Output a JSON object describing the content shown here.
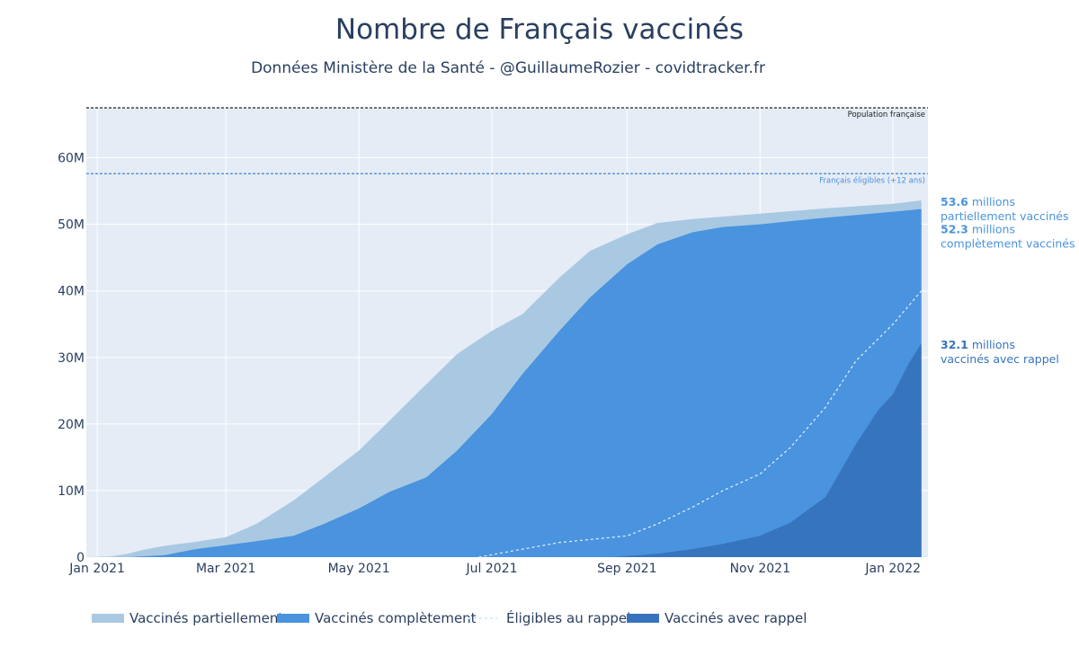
{
  "chart_data": {
    "type": "area",
    "title": "Nombre de Français vaccinés",
    "subtitle": "Données Ministère de la Santé - @GuillaumeRozier - covidtracker.fr",
    "xlabel": "",
    "ylabel": "",
    "x_range": [
      "2020-12-27",
      "2022-01-17"
    ],
    "x_ticks": [
      {
        "date": "2021-01-01",
        "label": "Jan 2021"
      },
      {
        "date": "2021-03-01",
        "label": "Mar 2021"
      },
      {
        "date": "2021-05-01",
        "label": "May 2021"
      },
      {
        "date": "2021-07-01",
        "label": "Jul 2021"
      },
      {
        "date": "2021-09-01",
        "label": "Sep 2021"
      },
      {
        "date": "2021-11-01",
        "label": "Nov 2021"
      },
      {
        "date": "2022-01-01",
        "label": "Jan 2022"
      }
    ],
    "ylim": [
      0,
      67.5
    ],
    "y_unit": "millions",
    "y_ticks": [
      {
        "value": 0,
        "label": "0"
      },
      {
        "value": 10,
        "label": "10M"
      },
      {
        "value": 20,
        "label": "20M"
      },
      {
        "value": 30,
        "label": "30M"
      },
      {
        "value": 40,
        "label": "40M"
      },
      {
        "value": 50,
        "label": "50M"
      },
      {
        "value": 60,
        "label": "60M"
      }
    ],
    "grid": true,
    "reference_lines": [
      {
        "name": "Population française",
        "value": 67.5,
        "color": "#222222"
      },
      {
        "name": "Français éligibles (+12 ans)",
        "value": 57.6,
        "color": "#4a90d9"
      }
    ],
    "series": [
      {
        "name": "Vaccinés partiellement",
        "kind": "area",
        "color": "#a9c9e3",
        "points": [
          [
            "2020-12-27",
            0
          ],
          [
            "2021-01-07",
            0.1
          ],
          [
            "2021-01-15",
            0.5
          ],
          [
            "2021-01-22",
            1.1
          ],
          [
            "2021-02-01",
            1.7
          ],
          [
            "2021-02-15",
            2.3
          ],
          [
            "2021-03-01",
            3.0
          ],
          [
            "2021-03-15",
            5.0
          ],
          [
            "2021-04-01",
            8.5
          ],
          [
            "2021-04-15",
            12.0
          ],
          [
            "2021-05-01",
            16.0
          ],
          [
            "2021-05-15",
            20.5
          ],
          [
            "2021-06-01",
            26.0
          ],
          [
            "2021-06-15",
            30.5
          ],
          [
            "2021-07-01",
            34.0
          ],
          [
            "2021-07-15",
            36.5
          ],
          [
            "2021-08-01",
            42.0
          ],
          [
            "2021-08-15",
            46.0
          ],
          [
            "2021-09-01",
            48.5
          ],
          [
            "2021-09-15",
            50.2
          ],
          [
            "2021-10-01",
            50.8
          ],
          [
            "2021-11-01",
            51.6
          ],
          [
            "2021-12-01",
            52.4
          ],
          [
            "2022-01-01",
            53.1
          ],
          [
            "2022-01-14",
            53.6
          ]
        ]
      },
      {
        "name": "Vaccinés complètement",
        "kind": "area",
        "color": "#4a93de",
        "points": [
          [
            "2020-12-27",
            0
          ],
          [
            "2021-01-15",
            0
          ],
          [
            "2021-02-01",
            0.3
          ],
          [
            "2021-02-15",
            1.2
          ],
          [
            "2021-03-01",
            1.8
          ],
          [
            "2021-03-15",
            2.4
          ],
          [
            "2021-04-01",
            3.2
          ],
          [
            "2021-04-15",
            5.0
          ],
          [
            "2021-05-01",
            7.3
          ],
          [
            "2021-05-15",
            9.8
          ],
          [
            "2021-06-01",
            12.0
          ],
          [
            "2021-06-15",
            16.0
          ],
          [
            "2021-07-01",
            21.5
          ],
          [
            "2021-07-15",
            27.5
          ],
          [
            "2021-08-01",
            34.0
          ],
          [
            "2021-08-15",
            39.0
          ],
          [
            "2021-09-01",
            44.0
          ],
          [
            "2021-09-15",
            47.0
          ],
          [
            "2021-10-01",
            48.8
          ],
          [
            "2021-10-15",
            49.6
          ],
          [
            "2021-11-01",
            50.0
          ],
          [
            "2021-12-01",
            51.0
          ],
          [
            "2022-01-01",
            51.9
          ],
          [
            "2022-01-14",
            52.3
          ]
        ]
      },
      {
        "name": "Éligibles au rappel",
        "kind": "dashed-line",
        "color": "#d6ecf9",
        "points": [
          [
            "2021-06-25",
            0
          ],
          [
            "2021-07-15",
            1.2
          ],
          [
            "2021-08-01",
            2.2
          ],
          [
            "2021-09-01",
            3.2
          ],
          [
            "2021-09-15",
            5.0
          ],
          [
            "2021-10-01",
            7.5
          ],
          [
            "2021-10-15",
            10.0
          ],
          [
            "2021-11-01",
            12.5
          ],
          [
            "2021-11-15",
            16.5
          ],
          [
            "2021-12-01",
            22.5
          ],
          [
            "2021-12-15",
            29.5
          ],
          [
            "2022-01-01",
            35.0
          ],
          [
            "2022-01-14",
            40.0
          ]
        ]
      },
      {
        "name": "Vaccinés avec rappel",
        "kind": "area",
        "color": "#3674bd",
        "points": [
          [
            "2021-08-25",
            0
          ],
          [
            "2021-09-15",
            0.5
          ],
          [
            "2021-10-01",
            1.2
          ],
          [
            "2021-10-15",
            2.0
          ],
          [
            "2021-11-01",
            3.2
          ],
          [
            "2021-11-15",
            5.2
          ],
          [
            "2021-12-01",
            9.0
          ],
          [
            "2021-12-15",
            17.0
          ],
          [
            "2021-12-25",
            22.0
          ],
          [
            "2022-01-01",
            24.5
          ],
          [
            "2022-01-08",
            29.0
          ],
          [
            "2022-01-14",
            32.1
          ]
        ]
      }
    ],
    "annotations": [
      {
        "value": "53.6",
        "unit": " millions",
        "text": "partiellement vaccinés",
        "color": "#4a93de",
        "y": 53.6
      },
      {
        "value": "52.3",
        "unit": " millions",
        "text": "complètement vaccinés",
        "color": "#4a93de",
        "y": 52.3
      },
      {
        "value": "32.1",
        "unit": " millions",
        "text": "vaccinés avec rappel",
        "color": "#3674bd",
        "y": 32.1
      }
    ],
    "legend": {
      "position": "bottom",
      "items": [
        {
          "label": "Vaccinés partiellement",
          "color": "#a9c9e3",
          "symbol": "box"
        },
        {
          "label": "Vaccinés complètement",
          "color": "#4a93de",
          "symbol": "box"
        },
        {
          "label": "Éligibles au rappel",
          "color": "#d6ecf9",
          "symbol": "dash"
        },
        {
          "label": "Vaccinés avec rappel",
          "color": "#3674bd",
          "symbol": "box"
        }
      ]
    },
    "plot_background": "#e5ecf6"
  }
}
